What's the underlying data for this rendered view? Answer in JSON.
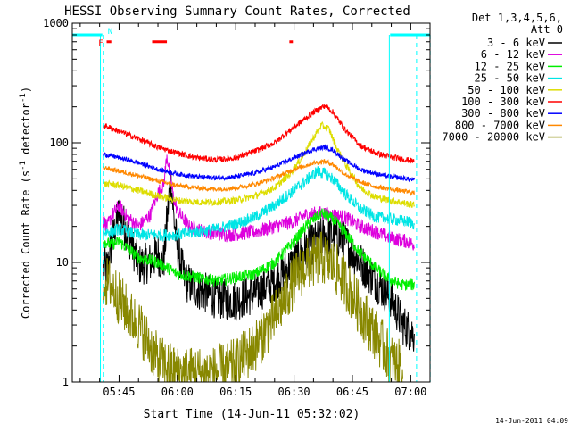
{
  "chart_data": {
    "type": "line",
    "title": "HESSI Observing Summary Count Rates, Corrected",
    "xlabel": "Start Time (14-Jun-11 05:32:02)",
    "ylabel": "Corrected Count Rate (s",
    "ylabel_sup1": "-1",
    "ylabel_mid": " detector",
    "ylabel_sup2": "-1",
    "ylabel_end": ")",
    "y_scale": "log",
    "ylim": [
      1,
      1000
    ],
    "xlim_minutes": [
      -12.033,
      79.967
    ],
    "x_ticks": [
      {
        "label": "05:45",
        "min": 0
      },
      {
        "label": "06:00",
        "min": 15
      },
      {
        "label": "06:15",
        "min": 30
      },
      {
        "label": "06:30",
        "min": 45
      },
      {
        "label": "06:45",
        "min": 60
      },
      {
        "label": "07:00",
        "min": 75
      }
    ],
    "y_ticks": [
      {
        "label": "1",
        "v": 1
      },
      {
        "label": "10",
        "v": 10
      },
      {
        "label": "100",
        "v": 100
      },
      {
        "label": "1000",
        "v": 1000
      }
    ],
    "legend_header": [
      "Det 1,3,4,5,6,",
      "Att 0"
    ],
    "series": [
      {
        "name": "3 - 6 keV",
        "color": "#000000",
        "noise": 0.35,
        "points": [
          [
            -3.9,
            9
          ],
          [
            -3,
            9
          ],
          [
            -2,
            14
          ],
          [
            0,
            26
          ],
          [
            3,
            15
          ],
          [
            5,
            9.5
          ],
          [
            8,
            10
          ],
          [
            10,
            12
          ],
          [
            10.8,
            10
          ],
          [
            11.5,
            10
          ],
          [
            12.2,
            20
          ],
          [
            13,
            40
          ],
          [
            13.5,
            46
          ],
          [
            14,
            25
          ],
          [
            15,
            13
          ],
          [
            17,
            7
          ],
          [
            20,
            6
          ],
          [
            25,
            5
          ],
          [
            30,
            4.8
          ],
          [
            35,
            5.5
          ],
          [
            40,
            7
          ],
          [
            45,
            10
          ],
          [
            48,
            13
          ],
          [
            52,
            16
          ],
          [
            55,
            17
          ],
          [
            58,
            15
          ],
          [
            62,
            10
          ],
          [
            66,
            7
          ],
          [
            70,
            5
          ],
          [
            73,
            3
          ],
          [
            76,
            2.5
          ]
        ]
      },
      {
        "name": "6 - 12 keV",
        "color": "#dd00dd",
        "noise": 0.12,
        "points": [
          [
            -3.9,
            22
          ],
          [
            -3,
            20
          ],
          [
            -2,
            24
          ],
          [
            0,
            30
          ],
          [
            2,
            24
          ],
          [
            5,
            20
          ],
          [
            8,
            25
          ],
          [
            10,
            38
          ],
          [
            11.5,
            45
          ],
          [
            12.3,
            80
          ],
          [
            13,
            55
          ],
          [
            14,
            35
          ],
          [
            15,
            27
          ],
          [
            18,
            20
          ],
          [
            22,
            18
          ],
          [
            28,
            17
          ],
          [
            35,
            18
          ],
          [
            40,
            20
          ],
          [
            45,
            22
          ],
          [
            48,
            25
          ],
          [
            52,
            26
          ],
          [
            55,
            25
          ],
          [
            58,
            24
          ],
          [
            62,
            20
          ],
          [
            66,
            18
          ],
          [
            70,
            16
          ],
          [
            74,
            15
          ],
          [
            76,
            14
          ]
        ]
      },
      {
        "name": "12 - 25 keV",
        "color": "#00ee00",
        "noise": 0.1,
        "points": [
          [
            -3.9,
            15
          ],
          [
            -2,
            14
          ],
          [
            0,
            15
          ],
          [
            5,
            11
          ],
          [
            10,
            10
          ],
          [
            15,
            8
          ],
          [
            20,
            7.5
          ],
          [
            25,
            7
          ],
          [
            30,
            7.5
          ],
          [
            35,
            8
          ],
          [
            40,
            10
          ],
          [
            45,
            15
          ],
          [
            48,
            20
          ],
          [
            52,
            26
          ],
          [
            55,
            23
          ],
          [
            58,
            18
          ],
          [
            62,
            12
          ],
          [
            66,
            9
          ],
          [
            70,
            7
          ],
          [
            73,
            6.5
          ],
          [
            76,
            6.5
          ]
        ]
      },
      {
        "name": "25 - 50 keV",
        "color": "#00e5e5",
        "noise": 0.1,
        "points": [
          [
            -3.9,
            18
          ],
          [
            -2,
            18
          ],
          [
            0,
            19
          ],
          [
            5,
            17
          ],
          [
            10,
            17
          ],
          [
            15,
            17
          ],
          [
            20,
            18
          ],
          [
            25,
            19
          ],
          [
            30,
            21
          ],
          [
            35,
            24
          ],
          [
            40,
            30
          ],
          [
            44,
            38
          ],
          [
            48,
            48
          ],
          [
            51,
            58
          ],
          [
            53,
            55
          ],
          [
            55,
            50
          ],
          [
            58,
            38
          ],
          [
            62,
            28
          ],
          [
            66,
            24
          ],
          [
            70,
            23
          ],
          [
            74,
            22
          ],
          [
            76,
            21
          ]
        ]
      },
      {
        "name": "50 - 100 keV",
        "color": "#dddd00",
        "noise": 0.06,
        "points": [
          [
            -3.9,
            45
          ],
          [
            -2,
            45
          ],
          [
            0,
            44
          ],
          [
            5,
            40
          ],
          [
            10,
            36
          ],
          [
            15,
            33
          ],
          [
            20,
            32
          ],
          [
            25,
            32
          ],
          [
            30,
            33
          ],
          [
            35,
            36
          ],
          [
            40,
            42
          ],
          [
            44,
            55
          ],
          [
            47,
            75
          ],
          [
            50,
            110
          ],
          [
            52,
            140
          ],
          [
            54,
            130
          ],
          [
            56,
            90
          ],
          [
            59,
            60
          ],
          [
            62,
            42
          ],
          [
            66,
            35
          ],
          [
            70,
            33
          ],
          [
            74,
            31
          ],
          [
            76,
            30
          ]
        ]
      },
      {
        "name": "100 - 300 keV",
        "color": "#ff0000",
        "noise": 0.05,
        "points": [
          [
            -3.9,
            140
          ],
          [
            -2,
            132
          ],
          [
            0,
            125
          ],
          [
            5,
            108
          ],
          [
            10,
            92
          ],
          [
            15,
            82
          ],
          [
            20,
            75
          ],
          [
            25,
            72
          ],
          [
            30,
            75
          ],
          [
            35,
            85
          ],
          [
            40,
            100
          ],
          [
            45,
            135
          ],
          [
            50,
            180
          ],
          [
            53,
            205
          ],
          [
            55,
            180
          ],
          [
            58,
            130
          ],
          [
            62,
            95
          ],
          [
            66,
            82
          ],
          [
            70,
            76
          ],
          [
            74,
            72
          ],
          [
            76,
            70
          ]
        ]
      },
      {
        "name": "300 - 800 keV",
        "color": "#0000ff",
        "noise": 0.04,
        "points": [
          [
            -3.9,
            80
          ],
          [
            -2,
            78
          ],
          [
            0,
            75
          ],
          [
            5,
            68
          ],
          [
            10,
            60
          ],
          [
            15,
            55
          ],
          [
            20,
            52
          ],
          [
            25,
            51
          ],
          [
            30,
            52
          ],
          [
            35,
            56
          ],
          [
            40,
            63
          ],
          [
            45,
            75
          ],
          [
            50,
            88
          ],
          [
            53,
            92
          ],
          [
            55,
            87
          ],
          [
            58,
            72
          ],
          [
            62,
            60
          ],
          [
            66,
            55
          ],
          [
            70,
            52
          ],
          [
            74,
            50
          ],
          [
            76,
            49
          ]
        ]
      },
      {
        "name": "800 - 7000 keV",
        "color": "#ff8800",
        "noise": 0.04,
        "points": [
          [
            -3.9,
            62
          ],
          [
            -2,
            60
          ],
          [
            0,
            58
          ],
          [
            5,
            53
          ],
          [
            10,
            48
          ],
          [
            15,
            44
          ],
          [
            20,
            42
          ],
          [
            25,
            41
          ],
          [
            30,
            42
          ],
          [
            35,
            45
          ],
          [
            40,
            51
          ],
          [
            45,
            60
          ],
          [
            50,
            68
          ],
          [
            53,
            70
          ],
          [
            55,
            66
          ],
          [
            58,
            55
          ],
          [
            62,
            47
          ],
          [
            66,
            43
          ],
          [
            70,
            41
          ],
          [
            74,
            39
          ],
          [
            76,
            38
          ]
        ]
      },
      {
        "name": "7000 - 20000 keV",
        "color": "#888800",
        "noise": 0.45,
        "points": [
          [
            -3.9,
            7
          ],
          [
            -2,
            6.5
          ],
          [
            0,
            5
          ],
          [
            3,
            3.5
          ],
          [
            5,
            3
          ],
          [
            8,
            2
          ],
          [
            10,
            1.5
          ],
          [
            15,
            1.2
          ],
          [
            20,
            1.2
          ],
          [
            25,
            1.2
          ],
          [
            30,
            1.4
          ],
          [
            35,
            2
          ],
          [
            40,
            3.5
          ],
          [
            45,
            7
          ],
          [
            48,
            9.5
          ],
          [
            52,
            11
          ],
          [
            55,
            9.5
          ],
          [
            58,
            7
          ],
          [
            62,
            4
          ],
          [
            66,
            2.5
          ],
          [
            70,
            1.5
          ],
          [
            73,
            1.3
          ]
        ]
      }
    ],
    "overlay_segments": [
      {
        "id": "saa-left",
        "color": "#00ffff",
        "value": 800,
        "x0": -12.0,
        "x1": -4.3
      },
      {
        "id": "saa-right",
        "color": "#00ffff",
        "value": 800,
        "x0": 69.7,
        "x1": 80.0
      },
      {
        "id": "flare-1",
        "color": "#ff0000",
        "value": 700,
        "x0": -3.2,
        "x1": -2.0
      },
      {
        "id": "flare-2",
        "color": "#ff0000",
        "value": 700,
        "x0": 8.5,
        "x1": 12.3
      },
      {
        "id": "flare-3",
        "color": "#ff0000",
        "value": 700,
        "x0": 43.8,
        "x1": 44.7
      }
    ],
    "flag_labels": [
      {
        "text": "F",
        "color": "#ff0000",
        "min": -4.7,
        "value": 700
      },
      {
        "text": "N",
        "color": "#00ffff",
        "min": -2.3,
        "value": 870
      }
    ],
    "vertical_lines": [
      {
        "min": -4.8,
        "color": "#00ffff",
        "style": "solid"
      },
      {
        "min": -3.95,
        "color": "#00ffff",
        "style": "dashed"
      },
      {
        "min": 69.5,
        "color": "#00ffff",
        "style": "solid"
      },
      {
        "min": 76.5,
        "color": "#00ffff",
        "style": "dashed"
      },
      {
        "min": 80.0,
        "color": "#00ffff",
        "style": "dashed"
      }
    ],
    "timestamp": "14-Jun-2011 04:09"
  }
}
